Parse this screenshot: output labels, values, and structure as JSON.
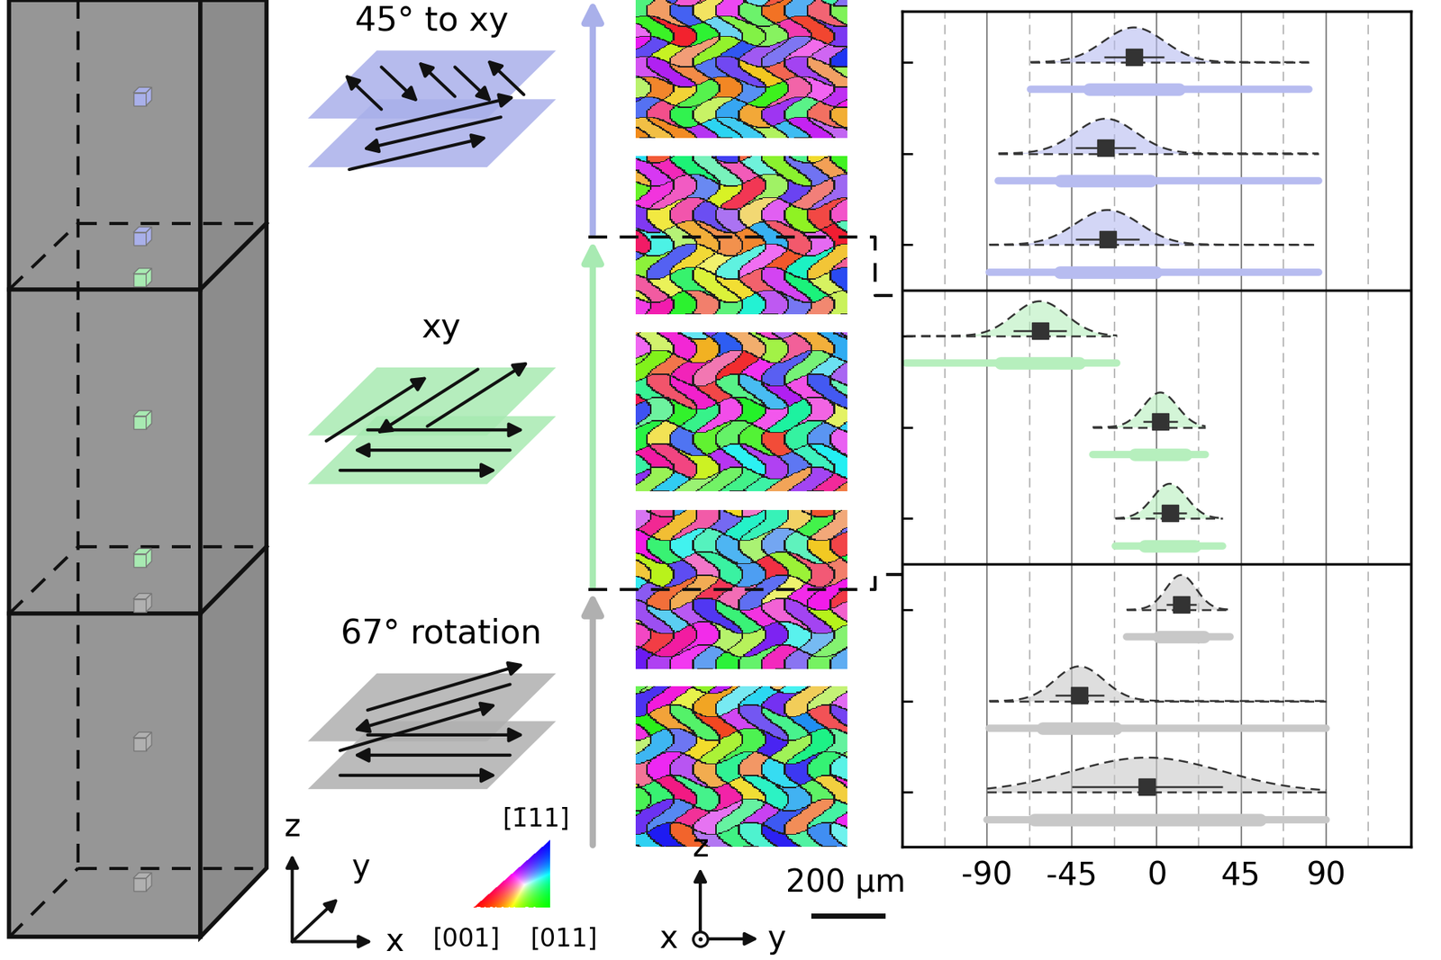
{
  "schematic": {
    "strategies": [
      {
        "label": "45° to xy",
        "color": "#a9b0ea"
      },
      {
        "label": "xy",
        "color": "#a8eab2"
      },
      {
        "label": "67° rotation",
        "color": "#b0b0b0"
      }
    ],
    "build_axes": {
      "x": "x",
      "y": "y",
      "z": "z"
    },
    "ipf_key": {
      "top": "[1̄11]",
      "left": "[001]",
      "right": "[011]"
    },
    "map_axes": {
      "z": "z",
      "x": "x",
      "y": "y"
    },
    "scale_bar": "200 µm"
  },
  "chart_data": {
    "type": "violin",
    "orientation": "horizontal",
    "categories": [
      null,
      null,
      null,
      null,
      null,
      null,
      null,
      null,
      null
    ],
    "xlim": [
      -135,
      135
    ],
    "xticks": [
      -90,
      -45,
      0,
      45,
      90
    ],
    "grid": true,
    "tick_labels": "x",
    "marker": "square",
    "series": [
      {
        "color": "#b7bcf0",
        "values": [
          -12,
          -27,
          -26,
          null,
          null,
          null,
          null,
          null,
          null
        ],
        "sd": [
          16,
          16,
          17,
          null,
          null,
          null,
          null,
          null,
          null
        ],
        "min": [
          -67,
          -84,
          -89,
          null,
          null,
          null,
          null,
          null,
          null
        ],
        "max": [
          81,
          86,
          86,
          null,
          null,
          null,
          null,
          null,
          null
        ]
      },
      {
        "color": "#b6efbd",
        "values": [
          null,
          null,
          null,
          -62,
          2,
          7,
          null,
          null,
          null
        ],
        "sd": [
          null,
          null,
          null,
          14,
          9,
          9,
          null,
          null,
          null
        ],
        "min": [
          null,
          null,
          null,
          -133,
          -34,
          -22,
          null,
          null,
          null
        ],
        "max": [
          null,
          null,
          null,
          -21,
          26,
          35,
          null,
          null,
          null
        ]
      },
      {
        "color": "#c8c8c8",
        "values": [
          null,
          null,
          null,
          null,
          null,
          null,
          13,
          -41,
          -5
        ],
        "sd": [
          null,
          null,
          null,
          null,
          null,
          null,
          8,
          13,
          40
        ],
        "min": [
          null,
          null,
          null,
          null,
          null,
          null,
          -16,
          -89,
          -90
        ],
        "max": [
          null,
          null,
          null,
          null,
          null,
          null,
          39,
          90,
          90
        ]
      }
    ]
  }
}
